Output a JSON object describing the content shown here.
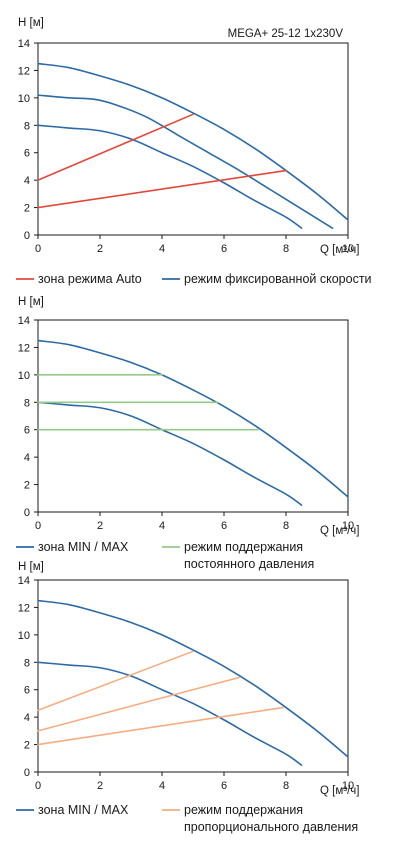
{
  "colors": {
    "blue": "#2b6aa8",
    "red": "#e2483a",
    "green": "#94c98a",
    "orange": "#f5ad80",
    "axis": "#1a1a1a"
  },
  "chart_data": [
    {
      "type": "line",
      "title": "MEGA+ 25-12 1x230V",
      "xlabel": "Q [м³/ч]",
      "ylabel": "H [м]",
      "xlim": [
        0,
        10
      ],
      "ylim": [
        0,
        14
      ],
      "xticks": [
        "0",
        "2",
        "4",
        "6",
        "8",
        "10"
      ],
      "yticks": [
        "0",
        "2",
        "4",
        "6",
        "8",
        "10",
        "12",
        "14"
      ],
      "legend": [
        {
          "label": "зона режима Auto",
          "color": "red"
        },
        {
          "label": "режим фиксированной скорости",
          "color": "blue"
        }
      ],
      "series": [
        {
          "color": "blue",
          "x": [
            0,
            1,
            2,
            3,
            4,
            5,
            6,
            7,
            8,
            9,
            10
          ],
          "y": [
            12.5,
            12.2,
            11.6,
            10.9,
            10.0,
            8.9,
            7.7,
            6.3,
            4.7,
            3.0,
            1.1
          ]
        },
        {
          "color": "blue",
          "x": [
            0,
            1,
            1.8,
            2.5,
            3.5,
            4.5,
            5.5,
            6.5,
            7.5,
            8.5,
            9.5
          ],
          "y": [
            10.2,
            10.0,
            9.9,
            9.5,
            8.6,
            7.3,
            6.0,
            4.7,
            3.3,
            1.9,
            0.5
          ]
        },
        {
          "color": "blue",
          "x": [
            0,
            1,
            2,
            3,
            4,
            5,
            6,
            7,
            8,
            8.5
          ],
          "y": [
            8.0,
            7.8,
            7.6,
            7.0,
            6.0,
            5.0,
            3.8,
            2.5,
            1.3,
            0.5
          ]
        },
        {
          "color": "red",
          "x": [
            0,
            5.0
          ],
          "y": [
            4.0,
            8.8
          ]
        },
        {
          "color": "red",
          "x": [
            0,
            8.0
          ],
          "y": [
            2.0,
            4.7
          ]
        }
      ]
    },
    {
      "type": "line",
      "title": "",
      "xlabel": "Q [м³/ч]",
      "ylabel": "H [м]",
      "xlim": [
        0,
        10
      ],
      "ylim": [
        0,
        14
      ],
      "xticks": [
        "0",
        "2",
        "4",
        "6",
        "8",
        "10"
      ],
      "yticks": [
        "0",
        "2",
        "4",
        "6",
        "8",
        "10",
        "12",
        "14"
      ],
      "legend": [
        {
          "label": "зона MIN / MAX",
          "color": "blue"
        },
        {
          "label": "режим поддержания\nпостоянного давления",
          "color": "green"
        }
      ],
      "series": [
        {
          "color": "blue",
          "x": [
            0,
            1,
            2,
            3,
            4,
            5,
            6,
            7,
            8,
            9,
            10
          ],
          "y": [
            12.5,
            12.2,
            11.6,
            10.9,
            10.0,
            8.9,
            7.7,
            6.3,
            4.7,
            3.0,
            1.1
          ]
        },
        {
          "color": "blue",
          "x": [
            0,
            1,
            2,
            3,
            4,
            5,
            6,
            7,
            8,
            8.5
          ],
          "y": [
            8.0,
            7.8,
            7.6,
            7.0,
            6.0,
            5.0,
            3.8,
            2.5,
            1.3,
            0.5
          ]
        },
        {
          "color": "green",
          "x": [
            0,
            4.0
          ],
          "y": [
            10,
            10
          ]
        },
        {
          "color": "green",
          "x": [
            0,
            5.8
          ],
          "y": [
            8,
            8
          ]
        },
        {
          "color": "green",
          "x": [
            0,
            7.1
          ],
          "y": [
            6,
            6
          ]
        }
      ]
    },
    {
      "type": "line",
      "title": "",
      "xlabel": "Q [м³/ч]",
      "ylabel": "H [м]",
      "xlim": [
        0,
        10
      ],
      "ylim": [
        0,
        14
      ],
      "xticks": [
        "0",
        "2",
        "4",
        "6",
        "8",
        "10"
      ],
      "yticks": [
        "0",
        "2",
        "4",
        "6",
        "8",
        "10",
        "12",
        "14"
      ],
      "legend": [
        {
          "label": "зона MIN / MAX",
          "color": "blue"
        },
        {
          "label": "режим поддержания\nпропорционального давления",
          "color": "orange"
        }
      ],
      "series": [
        {
          "color": "blue",
          "x": [
            0,
            1,
            2,
            3,
            4,
            5,
            6,
            7,
            8,
            9,
            10
          ],
          "y": [
            12.5,
            12.2,
            11.6,
            10.9,
            10.0,
            8.9,
            7.7,
            6.3,
            4.7,
            3.0,
            1.1
          ]
        },
        {
          "color": "blue",
          "x": [
            0,
            1,
            2,
            3,
            4,
            5,
            6,
            7,
            8,
            8.5
          ],
          "y": [
            8.0,
            7.8,
            7.6,
            7.0,
            6.0,
            5.0,
            3.8,
            2.5,
            1.3,
            0.5
          ]
        },
        {
          "color": "orange",
          "x": [
            0,
            5.0
          ],
          "y": [
            4.5,
            8.8
          ]
        },
        {
          "color": "orange",
          "x": [
            0,
            6.5
          ],
          "y": [
            3.0,
            6.9
          ]
        },
        {
          "color": "orange",
          "x": [
            0,
            7.9
          ],
          "y": [
            2.0,
            4.7
          ]
        }
      ]
    }
  ]
}
